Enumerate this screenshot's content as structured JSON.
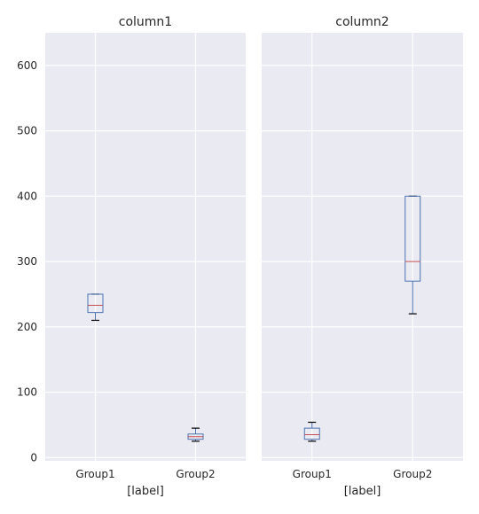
{
  "chart_data": {
    "type": "box",
    "y_ticks": [
      0,
      100,
      200,
      300,
      400,
      500,
      600
    ],
    "ylim": [
      -5,
      650
    ],
    "grid": true,
    "categories": [
      "Group1",
      "Group2"
    ],
    "xlabel": "[label]",
    "panels": [
      {
        "title": "column1",
        "boxes": [
          {
            "category": "Group1",
            "whisker_low": 210,
            "q1": 222,
            "median": 233,
            "q3": 250,
            "whisker_high": 250
          },
          {
            "category": "Group2",
            "whisker_low": 25,
            "q1": 28,
            "median": 32,
            "q3": 36,
            "whisker_high": 45
          }
        ]
      },
      {
        "title": "column2",
        "boxes": [
          {
            "category": "Group1",
            "whisker_low": 25,
            "q1": 28,
            "median": 35,
            "q3": 45,
            "whisker_high": 54
          },
          {
            "category": "Group2",
            "whisker_low": 220,
            "q1": 270,
            "median": 300,
            "q3": 400,
            "whisker_high": 400
          }
        ]
      }
    ],
    "colors": {
      "plot_bg": "#eaeaf2",
      "grid": "#ffffff",
      "box": "#4c72b0",
      "median": "#c44e52",
      "whisker_cap": "#000000",
      "text": "#262626"
    }
  }
}
